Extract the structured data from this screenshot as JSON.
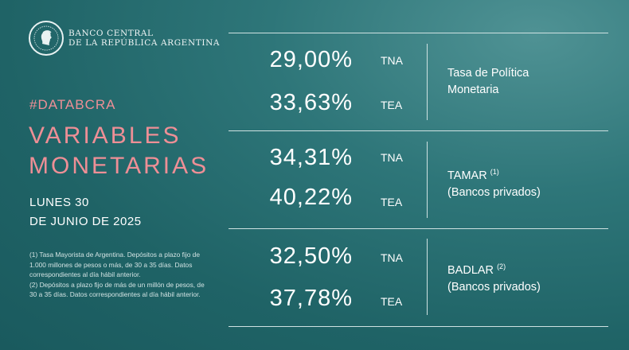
{
  "logo": {
    "line1": "BANCO CENTRAL",
    "line2": "DE LA REPÚBLICA ARGENTINA"
  },
  "hashtag": "#DATABCRA",
  "title": {
    "line1": "VARIABLES",
    "line2": "MONETARIAS"
  },
  "date": {
    "line1": "LUNES 30",
    "line2": "DE JUNIO DE 2025"
  },
  "footnotes": [
    "(1) Tasa Mayorista de Argentina. Depósitos a plazo fijo de 1.000 millones de pesos o más, de 30 a 35 días. Datos correspondientes al día hábil anterior.",
    "(2) Depósitos a plazo fijo de más de un millón de pesos, de 30 a 35 días. Datos correspondientes al día hábil anterior."
  ],
  "rates": [
    {
      "tna_value": "29,00%",
      "tna_unit": "TNA",
      "tea_value": "33,63%",
      "tea_unit": "TEA",
      "name": "Tasa de Política",
      "name2": "Monetaria",
      "note": ""
    },
    {
      "tna_value": "34,31%",
      "tna_unit": "TNA",
      "tea_value": "40,22%",
      "tea_unit": "TEA",
      "name": "TAMAR",
      "name2": "(Bancos privados)",
      "note": "(1)"
    },
    {
      "tna_value": "32,50%",
      "tna_unit": "TNA",
      "tea_value": "37,78%",
      "tea_unit": "TEA",
      "name": "BADLAR",
      "name2": "(Bancos privados)",
      "note": "(2)"
    }
  ],
  "colors": {
    "accent": "#ee8f96",
    "background": "#24696c"
  }
}
